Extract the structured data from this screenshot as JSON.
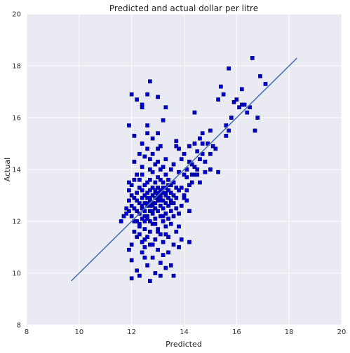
{
  "chart_data": {
    "type": "scatter",
    "title": "Predicted and actual dollar per litre",
    "xlabel": "Predicted",
    "ylabel": "Actual",
    "xlim": [
      8,
      20
    ],
    "ylim": [
      8,
      20
    ],
    "xticks": [
      "8",
      "10",
      "12",
      "14",
      "16",
      "18",
      "20"
    ],
    "yticks": [
      "8",
      "10",
      "12",
      "14",
      "16",
      "18",
      "20"
    ],
    "grid": true,
    "background_color": "#EAEAF2",
    "grid_color": "#FFFFFF",
    "point_color": "#0000CC",
    "line_color": "#4C72B0",
    "fit_line": {
      "x": [
        9.7,
        18.3
      ],
      "y": [
        9.7,
        18.3
      ]
    },
    "points": [
      [
        11.6,
        12.0
      ],
      [
        11.7,
        12.2
      ],
      [
        11.8,
        12.3
      ],
      [
        11.8,
        12.5
      ],
      [
        11.9,
        12.4
      ],
      [
        11.9,
        12.8
      ],
      [
        11.9,
        13.2
      ],
      [
        11.9,
        13.5
      ],
      [
        11.9,
        15.7
      ],
      [
        11.9,
        10.9
      ],
      [
        12.0,
        9.8
      ],
      [
        12.0,
        12.2
      ],
      [
        12.0,
        12.6
      ],
      [
        12.0,
        13.0
      ],
      [
        12.0,
        13.4
      ],
      [
        12.0,
        16.9
      ],
      [
        12.0,
        11.1
      ],
      [
        12.0,
        10.5
      ],
      [
        12.1,
        14.3
      ],
      [
        12.1,
        15.3
      ],
      [
        12.1,
        12.0
      ],
      [
        12.1,
        12.9
      ],
      [
        12.1,
        13.6
      ],
      [
        12.1,
        11.6
      ],
      [
        12.2,
        13.8
      ],
      [
        12.2,
        12.4
      ],
      [
        12.2,
        12.8
      ],
      [
        12.2,
        13.1
      ],
      [
        12.2,
        11.4
      ],
      [
        12.2,
        10.1
      ],
      [
        12.2,
        16.7
      ],
      [
        12.3,
        11.9
      ],
      [
        12.3,
        12.3
      ],
      [
        12.3,
        12.7
      ],
      [
        12.3,
        13.3
      ],
      [
        12.3,
        13.6
      ],
      [
        12.3,
        14.6
      ],
      [
        12.3,
        9.9
      ],
      [
        12.3,
        11.5
      ],
      [
        12.4,
        15.0
      ],
      [
        12.4,
        16.4
      ],
      [
        12.4,
        16.5
      ],
      [
        12.4,
        12.1
      ],
      [
        12.4,
        12.5
      ],
      [
        12.4,
        12.9
      ],
      [
        12.4,
        13.2
      ],
      [
        12.4,
        13.8
      ],
      [
        12.4,
        14.1
      ],
      [
        12.4,
        11.2
      ],
      [
        12.4,
        10.8
      ],
      [
        12.5,
        12.0
      ],
      [
        12.5,
        12.4
      ],
      [
        12.5,
        12.7
      ],
      [
        12.5,
        13.0
      ],
      [
        12.5,
        13.4
      ],
      [
        12.5,
        14.5
      ],
      [
        12.5,
        11.7
      ],
      [
        12.5,
        11.0
      ],
      [
        12.5,
        10.6
      ],
      [
        12.6,
        15.4
      ],
      [
        12.6,
        15.7
      ],
      [
        12.6,
        12.2
      ],
      [
        12.6,
        12.6
      ],
      [
        12.6,
        12.9
      ],
      [
        12.6,
        13.1
      ],
      [
        12.6,
        13.5
      ],
      [
        12.6,
        14.8
      ],
      [
        12.6,
        11.4
      ],
      [
        12.6,
        10.3
      ],
      [
        12.6,
        16.9
      ],
      [
        12.7,
        17.4
      ],
      [
        12.7,
        12.0
      ],
      [
        12.7,
        12.4
      ],
      [
        12.7,
        12.8
      ],
      [
        12.7,
        13.2
      ],
      [
        12.7,
        13.6
      ],
      [
        12.7,
        14.0
      ],
      [
        12.7,
        14.4
      ],
      [
        12.7,
        11.6
      ],
      [
        12.7,
        11.1
      ],
      [
        12.7,
        9.7
      ],
      [
        12.8,
        12.3
      ],
      [
        12.8,
        12.7
      ],
      [
        12.8,
        13.0
      ],
      [
        12.8,
        13.3
      ],
      [
        12.8,
        13.9
      ],
      [
        12.8,
        14.6
      ],
      [
        12.8,
        11.9
      ],
      [
        12.8,
        10.6
      ],
      [
        12.8,
        15.2
      ],
      [
        12.9,
        12.1
      ],
      [
        12.9,
        12.5
      ],
      [
        12.9,
        12.9
      ],
      [
        12.9,
        13.1
      ],
      [
        12.9,
        13.5
      ],
      [
        12.9,
        14.2
      ],
      [
        12.9,
        11.3
      ],
      [
        12.9,
        10.0
      ],
      [
        13.0,
        16.8
      ],
      [
        13.0,
        15.4
      ],
      [
        13.0,
        12.4
      ],
      [
        13.0,
        12.8
      ],
      [
        13.0,
        13.0
      ],
      [
        13.0,
        13.3
      ],
      [
        13.0,
        13.7
      ],
      [
        13.0,
        14.3
      ],
      [
        13.0,
        14.8
      ],
      [
        13.0,
        11.7
      ],
      [
        13.0,
        10.9
      ],
      [
        13.1,
        12.2
      ],
      [
        13.1,
        12.6
      ],
      [
        13.1,
        12.9
      ],
      [
        13.1,
        13.2
      ],
      [
        13.1,
        13.6
      ],
      [
        13.1,
        14.0
      ],
      [
        13.1,
        14.9
      ],
      [
        13.1,
        11.5
      ],
      [
        13.1,
        10.4
      ],
      [
        13.1,
        9.9
      ],
      [
        13.2,
        12.0
      ],
      [
        13.2,
        12.5
      ],
      [
        13.2,
        12.8
      ],
      [
        13.2,
        13.1
      ],
      [
        13.2,
        13.5
      ],
      [
        13.2,
        14.1
      ],
      [
        13.2,
        11.2
      ],
      [
        13.2,
        10.7
      ],
      [
        13.2,
        15.9
      ],
      [
        13.3,
        12.3
      ],
      [
        13.3,
        12.7
      ],
      [
        13.3,
        13.0
      ],
      [
        13.3,
        13.3
      ],
      [
        13.3,
        13.8
      ],
      [
        13.3,
        14.4
      ],
      [
        13.3,
        11.8
      ],
      [
        13.3,
        10.2
      ],
      [
        13.3,
        16.4
      ],
      [
        13.4,
        12.1
      ],
      [
        13.4,
        12.6
      ],
      [
        13.4,
        12.9
      ],
      [
        13.4,
        13.2
      ],
      [
        13.4,
        13.6
      ],
      [
        13.4,
        11.4
      ],
      [
        13.4,
        10.8
      ],
      [
        13.5,
        12.4
      ],
      [
        13.5,
        12.8
      ],
      [
        13.5,
        13.1
      ],
      [
        13.5,
        13.4
      ],
      [
        13.5,
        14.0
      ],
      [
        13.5,
        11.9
      ],
      [
        13.5,
        10.3
      ],
      [
        13.6,
        12.2
      ],
      [
        13.6,
        12.7
      ],
      [
        13.6,
        13.0
      ],
      [
        13.6,
        13.5
      ],
      [
        13.6,
        14.2
      ],
      [
        13.6,
        11.1
      ],
      [
        13.6,
        9.9
      ],
      [
        13.7,
        12.5
      ],
      [
        13.7,
        12.9
      ],
      [
        13.7,
        13.3
      ],
      [
        13.7,
        14.9
      ],
      [
        13.7,
        11.6
      ],
      [
        13.7,
        15.1
      ],
      [
        13.8,
        12.3
      ],
      [
        13.8,
        13.2
      ],
      [
        13.8,
        13.9
      ],
      [
        13.8,
        14.8
      ],
      [
        13.8,
        11.8
      ],
      [
        13.8,
        11.0
      ],
      [
        13.9,
        13.3
      ],
      [
        13.9,
        12.6
      ],
      [
        13.9,
        14.4
      ],
      [
        13.9,
        11.3
      ],
      [
        14.0,
        13.0
      ],
      [
        14.0,
        13.8
      ],
      [
        14.0,
        12.9
      ],
      [
        14.0,
        14.6
      ],
      [
        14.1,
        13.7
      ],
      [
        14.1,
        12.8
      ],
      [
        14.1,
        14.0
      ],
      [
        14.1,
        13.2
      ],
      [
        14.2,
        14.3
      ],
      [
        14.2,
        13.4
      ],
      [
        14.2,
        14.9
      ],
      [
        14.2,
        12.4
      ],
      [
        14.2,
        11.2
      ],
      [
        14.3,
        13.8
      ],
      [
        14.3,
        14.2
      ],
      [
        14.3,
        13.5
      ],
      [
        14.4,
        14.1
      ],
      [
        14.4,
        13.8
      ],
      [
        14.4,
        16.2
      ],
      [
        14.4,
        15.0
      ],
      [
        14.5,
        14.7
      ],
      [
        14.5,
        14.0
      ],
      [
        14.5,
        13.8
      ],
      [
        14.6,
        14.4
      ],
      [
        14.6,
        15.2
      ],
      [
        14.6,
        13.5
      ],
      [
        14.7,
        15.4
      ],
      [
        14.7,
        14.6
      ],
      [
        14.7,
        15.0
      ],
      [
        14.8,
        14.3
      ],
      [
        14.8,
        13.9
      ],
      [
        14.9,
        15.0
      ],
      [
        15.0,
        14.6
      ],
      [
        15.0,
        15.5
      ],
      [
        15.0,
        14.0
      ],
      [
        15.1,
        14.9
      ],
      [
        15.2,
        14.8
      ],
      [
        15.3,
        16.7
      ],
      [
        15.3,
        13.9
      ],
      [
        15.4,
        17.2
      ],
      [
        15.5,
        16.9
      ],
      [
        15.6,
        15.7
      ],
      [
        15.6,
        15.3
      ],
      [
        15.7,
        17.9
      ],
      [
        15.7,
        15.5
      ],
      [
        15.8,
        16.0
      ],
      [
        15.9,
        16.6
      ],
      [
        16.0,
        16.7
      ],
      [
        16.1,
        16.4
      ],
      [
        16.2,
        17.1
      ],
      [
        16.2,
        16.5
      ],
      [
        16.3,
        16.5
      ],
      [
        16.4,
        16.2
      ],
      [
        16.5,
        16.4
      ],
      [
        16.6,
        18.3
      ],
      [
        16.7,
        15.5
      ],
      [
        16.8,
        16.0
      ],
      [
        16.9,
        17.6
      ],
      [
        17.1,
        17.3
      ],
      [
        12.8,
        12.6
      ],
      [
        12.9,
        12.7
      ],
      [
        13.0,
        12.9
      ],
      [
        13.1,
        13.0
      ],
      [
        12.7,
        12.9
      ],
      [
        12.6,
        12.7
      ],
      [
        13.0,
        13.1
      ],
      [
        13.2,
        13.3
      ],
      [
        12.9,
        13.2
      ],
      [
        12.8,
        12.4
      ],
      [
        12.5,
        12.2
      ],
      [
        13.1,
        12.8
      ],
      [
        12.7,
        12.6
      ],
      [
        13.3,
        13.1
      ],
      [
        12.6,
        12.1
      ],
      [
        12.4,
        12.6
      ],
      [
        13.4,
        13.4
      ],
      [
        12.3,
        11.8
      ],
      [
        13.5,
        12.7
      ],
      [
        12.2,
        12.0
      ],
      [
        12.1,
        12.5
      ],
      [
        13.2,
        12.2
      ],
      [
        12.9,
        11.9
      ],
      [
        13.0,
        11.6
      ],
      [
        12.5,
        11.3
      ],
      [
        12.8,
        11.1
      ],
      [
        13.3,
        11.5
      ]
    ]
  }
}
